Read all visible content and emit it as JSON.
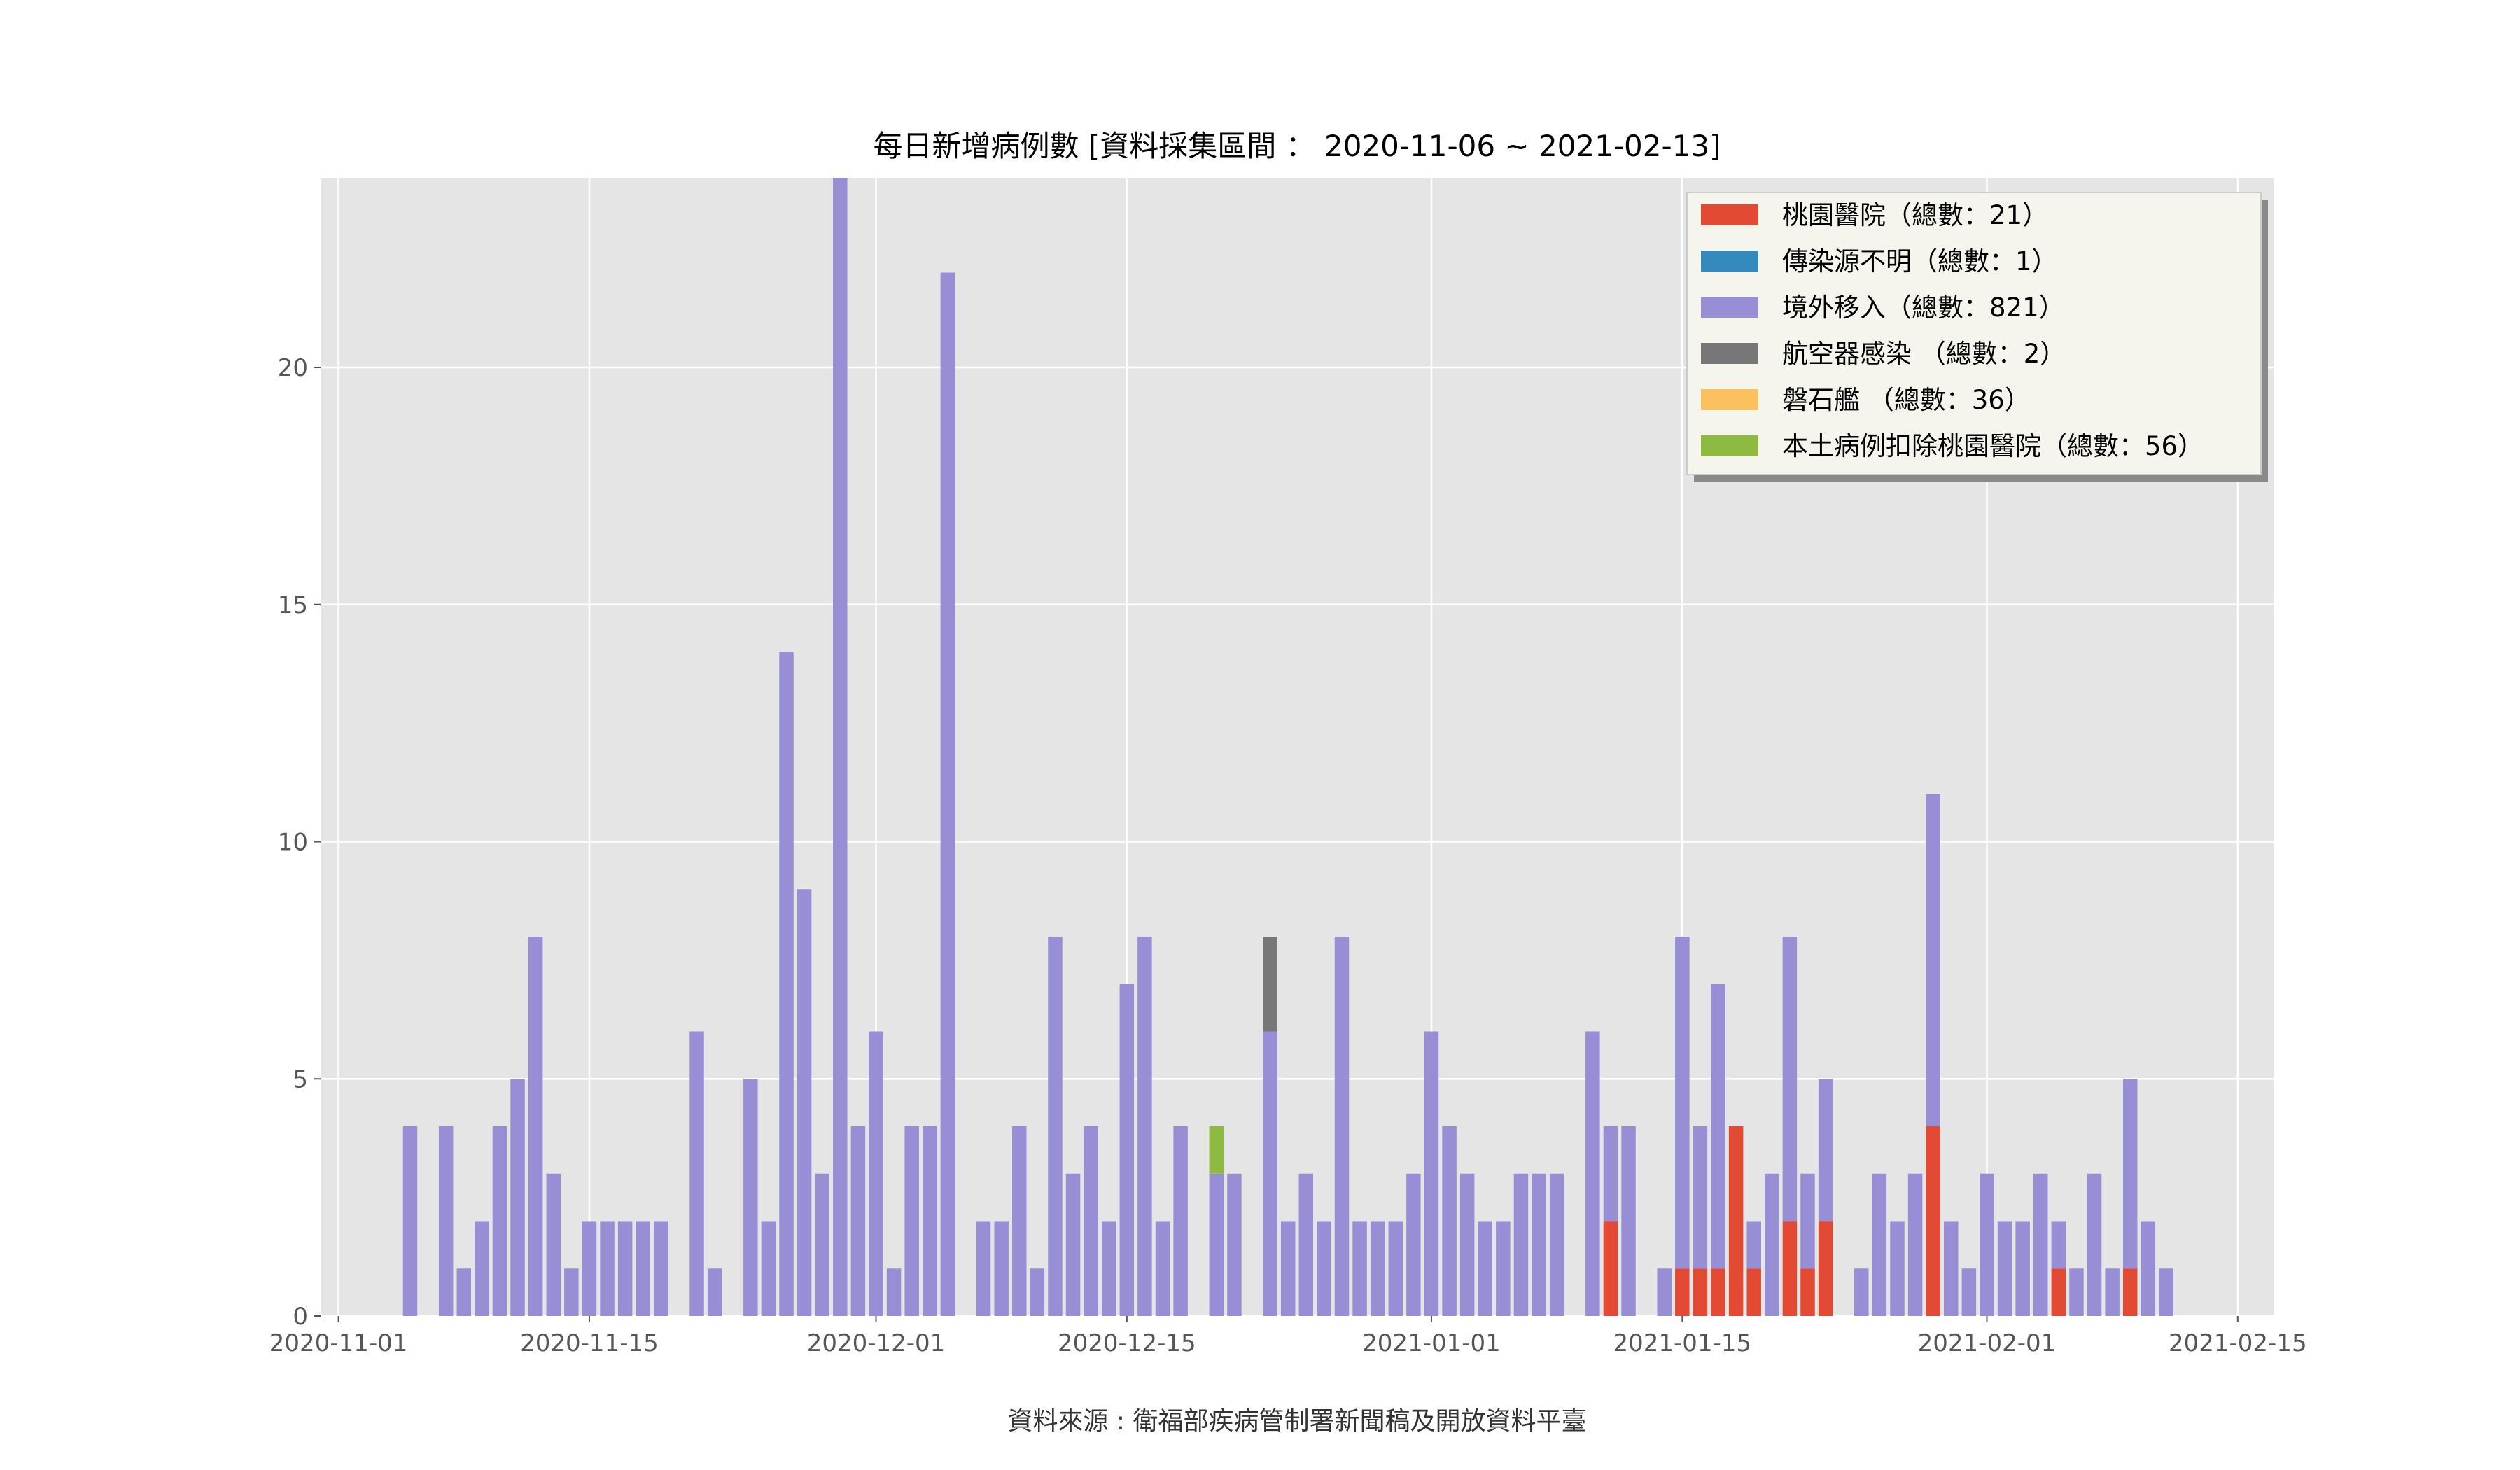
{
  "chart_data": {
    "type": "bar",
    "stacked": true,
    "title": "每日新增病例數 [資料採集區間 ： 2020-11-06 ~ 2021-02-13]",
    "source_note": "資料來源 : 衛福部疾病管制署新聞稿及開放資料平臺",
    "xlabel": "",
    "ylabel": "",
    "ylim": [
      0,
      24
    ],
    "xlim": [
      "2020-10-31",
      "2021-02-17"
    ],
    "x_ticks": [
      "2020-11-01",
      "2020-11-15",
      "2020-12-01",
      "2020-12-15",
      "2021-01-01",
      "2021-01-15",
      "2021-02-01",
      "2021-02-15"
    ],
    "y_ticks": [
      0,
      5,
      10,
      15,
      20
    ],
    "grid": true,
    "legend_position": "top-right",
    "dates": [
      "2020-11-05",
      "2020-11-07",
      "2020-11-08",
      "2020-11-09",
      "2020-11-10",
      "2020-11-11",
      "2020-11-12",
      "2020-11-13",
      "2020-11-14",
      "2020-11-15",
      "2020-11-16",
      "2020-11-17",
      "2020-11-18",
      "2020-11-19",
      "2020-11-21",
      "2020-11-22",
      "2020-11-24",
      "2020-11-25",
      "2020-11-26",
      "2020-11-27",
      "2020-11-28",
      "2020-11-29",
      "2020-11-30",
      "2020-12-01",
      "2020-12-02",
      "2020-12-03",
      "2020-12-04",
      "2020-12-05",
      "2020-12-07",
      "2020-12-08",
      "2020-12-09",
      "2020-12-10",
      "2020-12-11",
      "2020-12-12",
      "2020-12-13",
      "2020-12-14",
      "2020-12-15",
      "2020-12-16",
      "2020-12-17",
      "2020-12-18",
      "2020-12-20",
      "2020-12-21",
      "2020-12-23",
      "2020-12-24",
      "2020-12-25",
      "2020-12-26",
      "2020-12-27",
      "2020-12-28",
      "2020-12-29",
      "2020-12-30",
      "2020-12-31",
      "2021-01-01",
      "2021-01-02",
      "2021-01-03",
      "2021-01-04",
      "2021-01-05",
      "2021-01-06",
      "2021-01-07",
      "2021-01-08",
      "2021-01-10",
      "2021-01-11",
      "2021-01-12",
      "2021-01-14",
      "2021-01-15",
      "2021-01-16",
      "2021-01-17",
      "2021-01-18",
      "2021-01-19",
      "2021-01-20",
      "2021-01-21",
      "2021-01-22",
      "2021-01-23",
      "2021-01-25",
      "2021-01-26",
      "2021-01-27",
      "2021-01-28",
      "2021-01-29",
      "2021-01-30",
      "2021-01-31",
      "2021-02-01",
      "2021-02-02",
      "2021-02-03",
      "2021-02-04",
      "2021-02-05",
      "2021-02-06",
      "2021-02-07",
      "2021-02-08",
      "2021-02-09",
      "2021-02-10",
      "2021-02-11"
    ],
    "series": [
      {
        "name": "桃園醫院（總數：21）",
        "color": "#e24a33",
        "values": [
          0,
          0,
          0,
          0,
          0,
          0,
          0,
          0,
          0,
          0,
          0,
          0,
          0,
          0,
          0,
          0,
          0,
          0,
          0,
          0,
          0,
          0,
          0,
          0,
          0,
          0,
          0,
          0,
          0,
          0,
          0,
          0,
          0,
          0,
          0,
          0,
          0,
          0,
          0,
          0,
          0,
          0,
          0,
          0,
          0,
          0,
          0,
          0,
          0,
          0,
          0,
          0,
          0,
          0,
          0,
          0,
          0,
          0,
          0,
          0,
          2,
          0,
          0,
          1,
          1,
          1,
          4,
          1,
          0,
          2,
          1,
          2,
          0,
          0,
          0,
          0,
          4,
          0,
          0,
          0,
          0,
          0,
          0,
          1,
          0,
          0,
          0,
          1,
          0,
          0
        ]
      },
      {
        "name": "傳染源不明（總數：1）",
        "color": "#348abd",
        "values": [
          0,
          0,
          0,
          0,
          0,
          0,
          0,
          0,
          0,
          0,
          0,
          0,
          0,
          0,
          0,
          0,
          0,
          0,
          0,
          0,
          0,
          0,
          0,
          0,
          0,
          0,
          0,
          0,
          0,
          0,
          0,
          0,
          0,
          0,
          0,
          0,
          0,
          0,
          0,
          0,
          0,
          0,
          0,
          0,
          0,
          0,
          0,
          0,
          0,
          0,
          0,
          0,
          0,
          0,
          0,
          0,
          0,
          0,
          0,
          0,
          0,
          0,
          0,
          0,
          0,
          0,
          0,
          0,
          0,
          0,
          0,
          0,
          0,
          0,
          0,
          0,
          0,
          0,
          0,
          0,
          0,
          0,
          0,
          0,
          0,
          0,
          0,
          0,
          0,
          0
        ]
      },
      {
        "name": "境外移入（總數：821）",
        "color": "#988ed5",
        "values": [
          4,
          4,
          1,
          2,
          4,
          5,
          8,
          3,
          1,
          2,
          2,
          2,
          2,
          2,
          6,
          1,
          5,
          2,
          14,
          9,
          3,
          24,
          4,
          6,
          1,
          4,
          4,
          22,
          2,
          2,
          4,
          1,
          8,
          3,
          4,
          2,
          7,
          8,
          2,
          4,
          3,
          3,
          6,
          2,
          3,
          2,
          8,
          2,
          2,
          2,
          3,
          6,
          4,
          3,
          2,
          2,
          3,
          3,
          3,
          6,
          2,
          4,
          1,
          7,
          3,
          6,
          0,
          1,
          3,
          6,
          2,
          3,
          1,
          3,
          2,
          3,
          7,
          2,
          1,
          3,
          2,
          2,
          3,
          1,
          1,
          3,
          1,
          4,
          2,
          1
        ]
      },
      {
        "name": "航空器感染 （總數：2）",
        "color": "#777777",
        "values": [
          0,
          0,
          0,
          0,
          0,
          0,
          0,
          0,
          0,
          0,
          0,
          0,
          0,
          0,
          0,
          0,
          0,
          0,
          0,
          0,
          0,
          0,
          0,
          0,
          0,
          0,
          0,
          0,
          0,
          0,
          0,
          0,
          0,
          0,
          0,
          0,
          0,
          0,
          0,
          0,
          0,
          0,
          2,
          0,
          0,
          0,
          0,
          0,
          0,
          0,
          0,
          0,
          0,
          0,
          0,
          0,
          0,
          0,
          0,
          0,
          0,
          0,
          0,
          0,
          0,
          0,
          0,
          0,
          0,
          0,
          0,
          0,
          0,
          0,
          0,
          0,
          0,
          0,
          0,
          0,
          0,
          0,
          0,
          0,
          0,
          0,
          0,
          0,
          0,
          0
        ]
      },
      {
        "name": "磐石艦 （總數：36）",
        "color": "#fbc15e",
        "values": [
          0,
          0,
          0,
          0,
          0,
          0,
          0,
          0,
          0,
          0,
          0,
          0,
          0,
          0,
          0,
          0,
          0,
          0,
          0,
          0,
          0,
          0,
          0,
          0,
          0,
          0,
          0,
          0,
          0,
          0,
          0,
          0,
          0,
          0,
          0,
          0,
          0,
          0,
          0,
          0,
          0,
          0,
          0,
          0,
          0,
          0,
          0,
          0,
          0,
          0,
          0,
          0,
          0,
          0,
          0,
          0,
          0,
          0,
          0,
          0,
          0,
          0,
          0,
          0,
          0,
          0,
          0,
          0,
          0,
          0,
          0,
          0,
          0,
          0,
          0,
          0,
          0,
          0,
          0,
          0,
          0,
          0,
          0,
          0,
          0,
          0,
          0,
          0,
          0,
          0
        ]
      },
      {
        "name": "本土病例扣除桃園醫院（總數：56）",
        "color": "#8eba42",
        "values": [
          0,
          0,
          0,
          0,
          0,
          0,
          0,
          0,
          0,
          0,
          0,
          0,
          0,
          0,
          0,
          0,
          0,
          0,
          0,
          0,
          0,
          0,
          0,
          0,
          0,
          0,
          0,
          0,
          0,
          0,
          0,
          0,
          0,
          0,
          0,
          0,
          0,
          0,
          0,
          0,
          1,
          0,
          0,
          0,
          0,
          0,
          0,
          0,
          0,
          0,
          0,
          0,
          0,
          0,
          0,
          0,
          0,
          0,
          0,
          0,
          0,
          0,
          0,
          0,
          0,
          0,
          0,
          0,
          0,
          0,
          0,
          0,
          0,
          0,
          0,
          0,
          0,
          0,
          0,
          0,
          0,
          0,
          0,
          0,
          0,
          0,
          0,
          0,
          0,
          0
        ]
      }
    ]
  }
}
